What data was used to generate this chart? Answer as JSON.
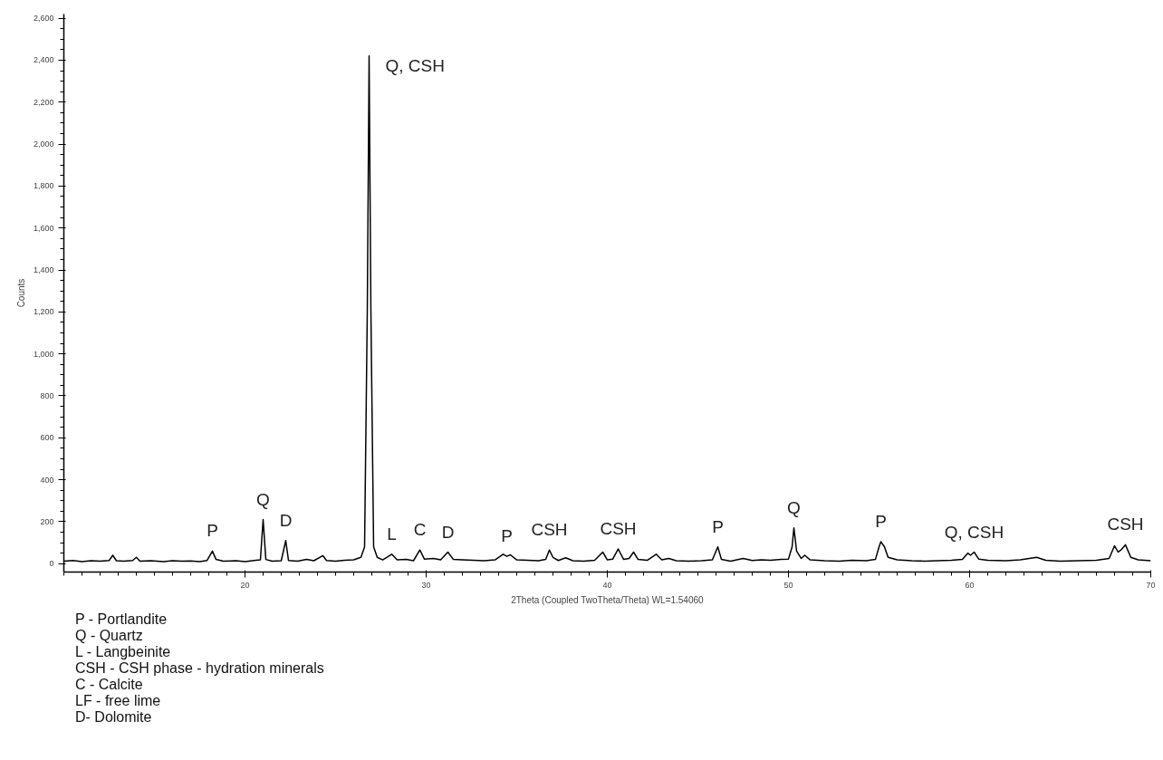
{
  "chart_data": {
    "type": "line",
    "xlabel": "2Theta (Coupled TwoTheta/Theta) WL=1.54060",
    "ylabel": "Counts",
    "xlim": [
      10,
      70
    ],
    "xticks": [
      20,
      30,
      40,
      50,
      60,
      70
    ],
    "ylim": [
      -40,
      2620
    ],
    "yticks": [
      0,
      200,
      400,
      600,
      800,
      {
        "value": 1000,
        "label": "1,000"
      },
      {
        "value": 1200,
        "label": "1,200"
      },
      {
        "value": 1400,
        "label": "1,400"
      },
      {
        "value": 1600,
        "label": "1,600"
      },
      {
        "value": 1800,
        "label": "1,800"
      },
      {
        "value": 2000,
        "label": "2,000"
      },
      {
        "value": 2200,
        "label": "2,200"
      },
      {
        "value": 2400,
        "label": "2,400"
      },
      {
        "value": 2600,
        "label": "2,600"
      }
    ],
    "grid": false,
    "series": [
      {
        "color": "#000000",
        "x": [
          10.0,
          10.5,
          11,
          11.5,
          12,
          12.5,
          12.7,
          12.9,
          13.3,
          13.8,
          14.0,
          14.2,
          14.8,
          15.5,
          16,
          16.5,
          17,
          17.5,
          17.9,
          18.2,
          18.4,
          18.8,
          19.5,
          20.0,
          20.5,
          20.85,
          21.0,
          21.15,
          21.5,
          22.0,
          22.25,
          22.4,
          22.9,
          23.4,
          23.8,
          24.3,
          24.5,
          25,
          25.5,
          26,
          26.4,
          26.6,
          26.75,
          26.85,
          26.95,
          27.1,
          27.3,
          27.6,
          28.1,
          28.4,
          28.9,
          29.3,
          29.65,
          29.9,
          30.4,
          30.8,
          31.2,
          31.5,
          32,
          32.6,
          33.2,
          33.8,
          34.25,
          34.45,
          34.65,
          35,
          35.6,
          36.2,
          36.6,
          36.8,
          37.0,
          37.3,
          37.7,
          38.1,
          38.7,
          39.3,
          39.75,
          40.0,
          40.3,
          40.6,
          40.9,
          41.2,
          41.45,
          41.7,
          42.2,
          42.7,
          43,
          43.4,
          43.8,
          44.5,
          45.2,
          45.8,
          46.1,
          46.3,
          46.8,
          47.5,
          48,
          48.5,
          49,
          49.6,
          50.0,
          50.2,
          50.3,
          50.45,
          50.7,
          50.9,
          51.2,
          52,
          52.8,
          53.5,
          54.3,
          54.8,
          55.0,
          55.1,
          55.3,
          55.5,
          56,
          56.8,
          57.5,
          58.2,
          59,
          59.6,
          59.9,
          60.05,
          60.25,
          60.5,
          61,
          62,
          62.8,
          63.7,
          64.2,
          65,
          66,
          67,
          67.7,
          68.0,
          68.2,
          68.35,
          68.6,
          68.9,
          69.3,
          70
        ],
        "values": [
          12,
          15,
          10,
          14,
          12,
          15,
          40,
          14,
          12,
          15,
          30,
          12,
          14,
          10,
          14,
          12,
          13,
          10,
          15,
          60,
          20,
          12,
          14,
          10,
          15,
          18,
          210,
          20,
          12,
          14,
          110,
          15,
          12,
          20,
          14,
          38,
          15,
          12,
          16,
          18,
          30,
          80,
          1200,
          2420,
          1200,
          80,
          30,
          18,
          45,
          18,
          20,
          14,
          65,
          22,
          25,
          18,
          55,
          20,
          18,
          16,
          14,
          18,
          45,
          35,
          42,
          18,
          16,
          14,
          20,
          65,
          30,
          15,
          28,
          14,
          12,
          16,
          55,
          18,
          22,
          70,
          20,
          25,
          55,
          20,
          16,
          45,
          18,
          25,
          14,
          12,
          14,
          18,
          80,
          20,
          12,
          25,
          15,
          18,
          16,
          20,
          22,
          80,
          170,
          60,
          25,
          40,
          18,
          14,
          12,
          16,
          14,
          20,
          80,
          105,
          80,
          30,
          18,
          14,
          12,
          14,
          16,
          20,
          50,
          40,
          55,
          22,
          16,
          14,
          18,
          30,
          16,
          12,
          14,
          16,
          25,
          85,
          55,
          65,
          90,
          30,
          18,
          14
        ]
      }
    ],
    "annotations": [
      {
        "text": "P",
        "x": 18.2,
        "y": 60
      },
      {
        "text": "Q",
        "x": 21.0,
        "y": 210
      },
      {
        "text": "D",
        "x": 22.25,
        "y": 110
      },
      {
        "text": "Q, CSH",
        "x": 26.85,
        "y": 2420
      },
      {
        "text": "L",
        "x": 28.1,
        "y": 45
      },
      {
        "text": "C",
        "x": 29.65,
        "y": 65
      },
      {
        "text": "D",
        "x": 31.2,
        "y": 55
      },
      {
        "text": "P",
        "x": 34.45,
        "y": 35
      },
      {
        "text": "CSH",
        "x": 36.8,
        "y": 65
      },
      {
        "text": "CSH",
        "x": 40.6,
        "y": 70
      },
      {
        "text": "P",
        "x": 46.1,
        "y": 80
      },
      {
        "text": "Q",
        "x": 50.3,
        "y": 170
      },
      {
        "text": "P",
        "x": 55.1,
        "y": 105
      },
      {
        "text": "Q, CSH",
        "x": 60.25,
        "y": 55
      },
      {
        "text": "CSH",
        "x": 68.6,
        "y": 90
      },
      "P - Portlandite",
      "Q - Quartz",
      "L - Langbeinite",
      "CSH - CSH phase - hydration minerals",
      "C - Calcite",
      "LF - free lime",
      "D- Dolomite"
    ]
  }
}
